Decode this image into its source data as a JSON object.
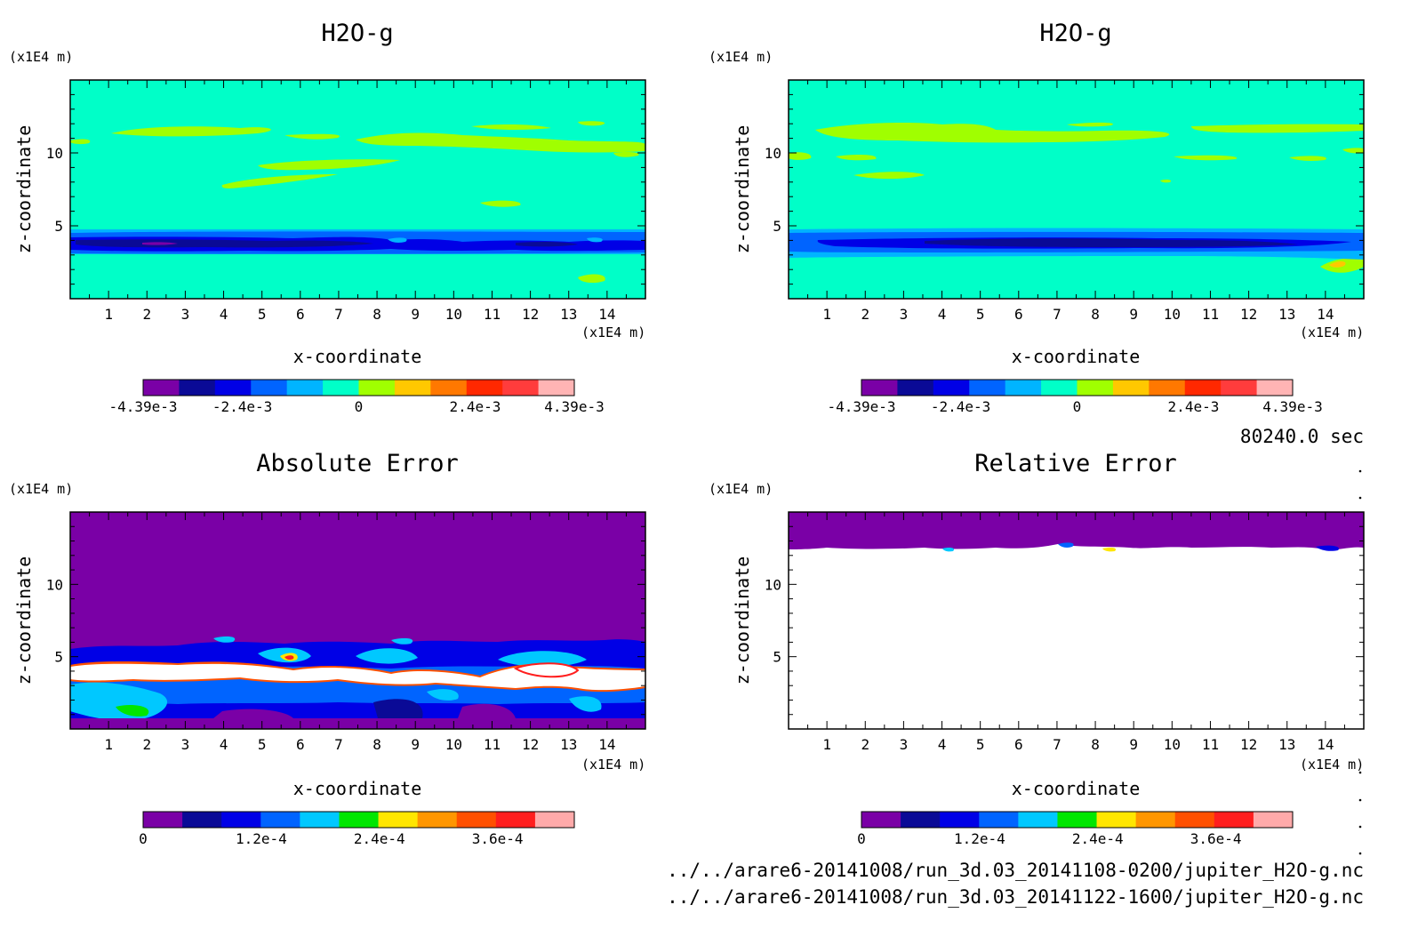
{
  "chart_data": [
    {
      "type": "heatmap",
      "title": "H2O-g",
      "xlabel": "x-coordinate",
      "ylabel": "z-coordinate",
      "x_unit": "(x1E4 m)",
      "z_unit": "(x1E4 m)",
      "xlim": [
        0,
        15
      ],
      "zlim": [
        0,
        15
      ],
      "x_ticks": [
        "1",
        "2",
        "3",
        "4",
        "5",
        "6",
        "7",
        "8",
        "9",
        "10",
        "11",
        "12",
        "13",
        "14"
      ],
      "z_ticks": [
        "5",
        "10"
      ],
      "colorbar": {
        "colors": [
          "#7a00a6",
          "#0a0a96",
          "#0000e6",
          "#0064ff",
          "#00b4ff",
          "#00ffc8",
          "#a0ff00",
          "#ffc800",
          "#ff7800",
          "#ff2800",
          "#ff3c3c",
          "#ffb4b4"
        ],
        "labels": [
          "-4.39e-3",
          "-2.4e-3",
          "0",
          "2.4e-3",
          "4.39e-3"
        ]
      },
      "background_color": "#00ffc8"
    },
    {
      "type": "heatmap",
      "title": "H2O-g",
      "xlabel": "x-coordinate",
      "ylabel": "z-coordinate",
      "x_unit": "(x1E4 m)",
      "z_unit": "(x1E4 m)",
      "xlim": [
        0,
        15
      ],
      "zlim": [
        0,
        15
      ],
      "x_ticks": [
        "1",
        "2",
        "3",
        "4",
        "5",
        "6",
        "7",
        "8",
        "9",
        "10",
        "11",
        "12",
        "13",
        "14"
      ],
      "z_ticks": [
        "5",
        "10"
      ],
      "colorbar": {
        "colors": [
          "#7a00a6",
          "#0a0a96",
          "#0000e6",
          "#0064ff",
          "#00b4ff",
          "#00ffc8",
          "#a0ff00",
          "#ffc800",
          "#ff7800",
          "#ff2800",
          "#ff3c3c",
          "#ffb4b4"
        ],
        "labels": [
          "-4.39e-3",
          "-2.4e-3",
          "0",
          "2.4e-3",
          "4.39e-3"
        ]
      },
      "background_color": "#00ffc8"
    },
    {
      "type": "heatmap",
      "title": "Absolute Error",
      "xlabel": "x-coordinate",
      "ylabel": "z-coordinate",
      "x_unit": "(x1E4 m)",
      "z_unit": "(x1E4 m)",
      "xlim": [
        0,
        15
      ],
      "zlim": [
        0,
        15
      ],
      "x_ticks": [
        "1",
        "2",
        "3",
        "4",
        "5",
        "6",
        "7",
        "8",
        "9",
        "10",
        "11",
        "12",
        "13",
        "14"
      ],
      "z_ticks": [
        "5",
        "10"
      ],
      "colorbar": {
        "colors": [
          "#7a00a6",
          "#0a0a96",
          "#0000e6",
          "#0064ff",
          "#00c8ff",
          "#00e600",
          "#ffe600",
          "#ff9600",
          "#ff5000",
          "#ff1e1e",
          "#ffaaaa"
        ],
        "labels": [
          "0",
          "1.2e-4",
          "2.4e-4",
          "3.6e-4"
        ]
      },
      "background_color": "#7a00a6"
    },
    {
      "type": "heatmap",
      "title": "Relative Error",
      "xlabel": "x-coordinate",
      "ylabel": "z-coordinate",
      "x_unit": "(x1E4 m)",
      "z_unit": "(x1E4 m)",
      "xlim": [
        0,
        15
      ],
      "zlim": [
        0,
        15
      ],
      "x_ticks": [
        "1",
        "2",
        "3",
        "4",
        "5",
        "6",
        "7",
        "8",
        "9",
        "10",
        "11",
        "12",
        "13",
        "14"
      ],
      "z_ticks": [
        "5",
        "10"
      ],
      "colorbar": {
        "colors": [
          "#7a00a6",
          "#0a0a96",
          "#0000e6",
          "#0064ff",
          "#00c8ff",
          "#00e600",
          "#ffe600",
          "#ff9600",
          "#ff5000",
          "#ff1e1e",
          "#ffaaaa"
        ],
        "labels": [
          "0",
          "1.2e-4",
          "2.4e-4",
          "3.6e-4"
        ]
      },
      "background_color": "#ffffff"
    }
  ],
  "time_label": "80240.0 sec",
  "files": [
    "../../arare6-20141008/run_3d.03_20141108-0200/jupiter_H2O-g.nc",
    "../../arare6-20141008/run_3d.03_20141122-1600/jupiter_H2O-g.nc"
  ]
}
